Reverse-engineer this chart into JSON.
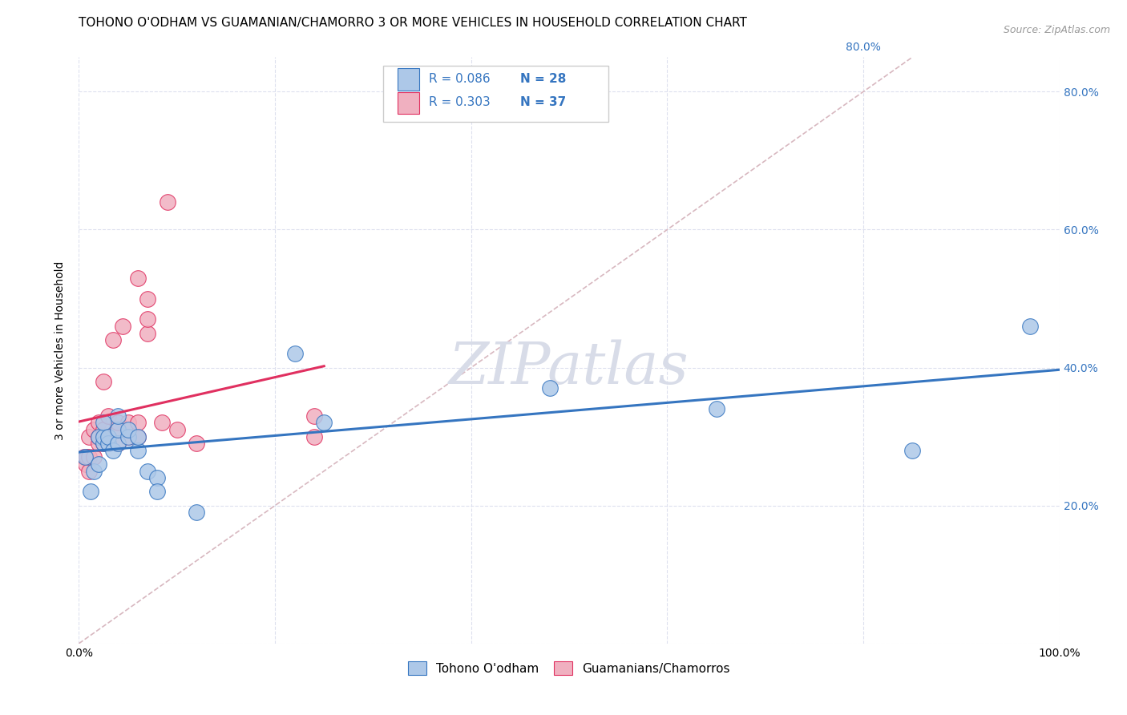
{
  "title": "TOHONO O'ODHAM VS GUAMANIAN/CHAMORRO 3 OR MORE VEHICLES IN HOUSEHOLD CORRELATION CHART",
  "source": "Source: ZipAtlas.com",
  "ylabel": "3 or more Vehicles in Household",
  "legend_label1": "Tohono O'odham",
  "legend_label2": "Guamanians/Chamorros",
  "R1": 0.086,
  "N1": 28,
  "R2": 0.303,
  "N2": 37,
  "xlim": [
    0.0,
    1.0
  ],
  "ylim": [
    0.0,
    0.85
  ],
  "xticks": [
    0.0,
    0.2,
    0.4,
    0.6,
    0.8,
    1.0
  ],
  "xticklabels": [
    "0.0%",
    "",
    "",
    "",
    "",
    "100.0%"
  ],
  "yticks": [
    0.0,
    0.2,
    0.4,
    0.6,
    0.8
  ],
  "yticklabels_left": [
    "",
    "",
    "",
    "",
    ""
  ],
  "yticklabels_right": [
    "",
    "20.0%",
    "40.0%",
    "60.0%",
    "80.0%"
  ],
  "color_blue": "#adc8e8",
  "color_pink": "#f0b0c0",
  "line_color_blue": "#3575c0",
  "line_color_pink": "#e03060",
  "diag_color": "#d8b8c0",
  "watermark": "ZIPatlas",
  "blue_x": [
    0.006,
    0.012,
    0.015,
    0.02,
    0.02,
    0.025,
    0.025,
    0.025,
    0.03,
    0.03,
    0.035,
    0.04,
    0.04,
    0.04,
    0.05,
    0.05,
    0.06,
    0.06,
    0.07,
    0.08,
    0.08,
    0.12,
    0.22,
    0.25,
    0.48,
    0.65,
    0.85,
    0.97
  ],
  "blue_y": [
    0.27,
    0.22,
    0.25,
    0.26,
    0.3,
    0.29,
    0.3,
    0.32,
    0.29,
    0.3,
    0.28,
    0.29,
    0.31,
    0.33,
    0.3,
    0.31,
    0.28,
    0.3,
    0.25,
    0.24,
    0.22,
    0.19,
    0.42,
    0.32,
    0.37,
    0.34,
    0.28,
    0.46
  ],
  "pink_x": [
    0.005,
    0.007,
    0.008,
    0.01,
    0.01,
    0.01,
    0.015,
    0.015,
    0.02,
    0.02,
    0.02,
    0.025,
    0.025,
    0.025,
    0.025,
    0.03,
    0.03,
    0.03,
    0.035,
    0.04,
    0.04,
    0.04,
    0.045,
    0.05,
    0.05,
    0.06,
    0.06,
    0.06,
    0.07,
    0.07,
    0.07,
    0.085,
    0.09,
    0.1,
    0.12,
    0.24,
    0.24
  ],
  "pink_y": [
    0.27,
    0.26,
    0.27,
    0.25,
    0.27,
    0.3,
    0.27,
    0.31,
    0.29,
    0.3,
    0.32,
    0.29,
    0.3,
    0.31,
    0.38,
    0.29,
    0.3,
    0.33,
    0.44,
    0.29,
    0.31,
    0.32,
    0.46,
    0.3,
    0.32,
    0.3,
    0.32,
    0.53,
    0.45,
    0.47,
    0.5,
    0.32,
    0.64,
    0.31,
    0.29,
    0.3,
    0.33
  ],
  "background_color": "#ffffff",
  "grid_color": "#dde0ee",
  "title_fontsize": 11,
  "axis_fontsize": 10,
  "tick_fontsize": 10,
  "watermark_fontsize": 52,
  "watermark_color": "#d8dce8"
}
